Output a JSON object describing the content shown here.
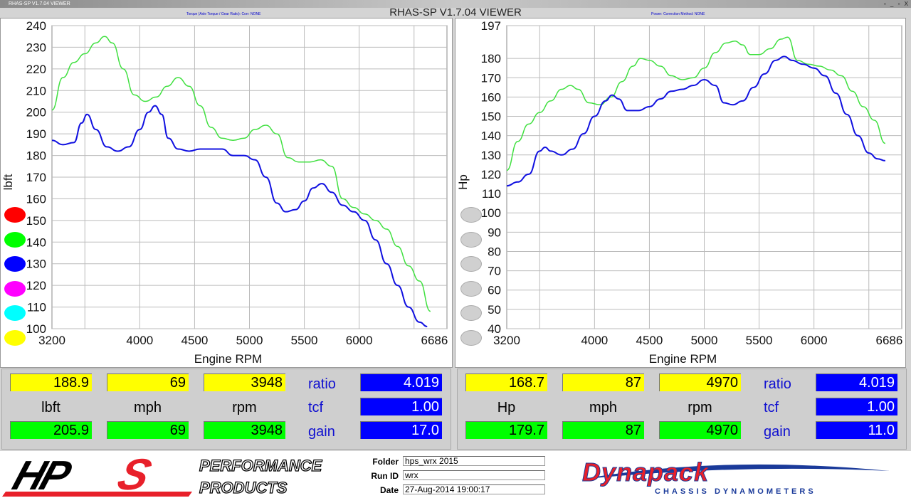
{
  "window": {
    "title": "RHAS-SP V1.7.04  VIEWER",
    "app_title": "RHAS-SP V1.7.04  VIEWER",
    "controls": "▫ _ ▫ X"
  },
  "left_chart": {
    "subtitle": "Torque (Axle Torque / Gear Ratio):      Corr: NONE"
  },
  "right_chart": {
    "subtitle": "Power:      Correction Method: NONE"
  },
  "chart_data": [
    {
      "type": "line",
      "ylabel": "lbft",
      "xlabel": "Engine RPM",
      "xlim": [
        3200,
        6800
      ],
      "ylim": [
        100,
        240
      ],
      "x_ticks": [
        3200,
        4000,
        4500,
        5000,
        5500,
        6000,
        6686
      ],
      "y_ticks": [
        240,
        230,
        220,
        210,
        200,
        190,
        180,
        170,
        160,
        150,
        140,
        130,
        120,
        110,
        100
      ],
      "grid": true,
      "series": [
        {
          "color": "#40e040",
          "x": [
            3200,
            3300,
            3400,
            3500,
            3600,
            3680,
            3750,
            3850,
            3950,
            4050,
            4150,
            4250,
            4350,
            4450,
            4550,
            4650,
            4750,
            4850,
            4950,
            5050,
            5150,
            5250,
            5350,
            5450,
            5550,
            5650,
            5750,
            5850,
            5950,
            6050,
            6150,
            6250,
            6350,
            6450,
            6550,
            6650
          ],
          "y": [
            201,
            216,
            223,
            227,
            232,
            235,
            232,
            220,
            208,
            205,
            207,
            212,
            216,
            212,
            203,
            193,
            188,
            187,
            188,
            192,
            194,
            190,
            179,
            177,
            177,
            178,
            175,
            160,
            156,
            153,
            150,
            146,
            138,
            129,
            122,
            108
          ]
        },
        {
          "color": "#1010e0",
          "x": [
            3200,
            3300,
            3400,
            3470,
            3520,
            3600,
            3700,
            3800,
            3900,
            4000,
            4080,
            4140,
            4200,
            4260,
            4350,
            4450,
            4550,
            4650,
            4750,
            4850,
            4950,
            5050,
            5150,
            5250,
            5330,
            5420,
            5500,
            5580,
            5660,
            5750,
            5850,
            5950,
            6050,
            6150,
            6250,
            6350,
            6450,
            6550,
            6620
          ],
          "y": [
            187,
            185,
            186,
            195,
            199,
            192,
            184,
            182,
            184,
            192,
            200,
            203,
            199,
            188,
            183,
            182,
            183,
            183,
            183,
            180,
            180,
            178,
            170,
            158,
            154,
            155,
            159,
            165,
            167,
            163,
            157,
            154,
            150,
            141,
            130,
            120,
            110,
            103,
            101
          ]
        }
      ]
    },
    {
      "type": "line",
      "ylabel": "Hp",
      "xlabel": "Engine RPM",
      "xlim": [
        3200,
        6800
      ],
      "ylim": [
        40,
        197
      ],
      "x_ticks": [
        3200,
        4000,
        4500,
        5000,
        5500,
        6000,
        6686
      ],
      "y_ticks": [
        197,
        180,
        170,
        160,
        150,
        140,
        130,
        120,
        110,
        100,
        90,
        80,
        70,
        60,
        50,
        40
      ],
      "grid": true,
      "series": [
        {
          "color": "#40e040",
          "x": [
            3200,
            3300,
            3400,
            3500,
            3600,
            3700,
            3780,
            3850,
            3950,
            4050,
            4150,
            4250,
            4350,
            4420,
            4500,
            4600,
            4700,
            4800,
            4900,
            5000,
            5100,
            5200,
            5280,
            5350,
            5420,
            5500,
            5600,
            5700,
            5760,
            5850,
            5950,
            6050,
            6150,
            6250,
            6350,
            6450,
            6550,
            6650
          ],
          "y": [
            122,
            137,
            146,
            152,
            158,
            164,
            166,
            164,
            157,
            156,
            160,
            168,
            176,
            180,
            179,
            176,
            171,
            169,
            170,
            175,
            183,
            188,
            189,
            187,
            182,
            182,
            185,
            190,
            191,
            179,
            177,
            176,
            174,
            171,
            163,
            155,
            148,
            136
          ]
        },
        {
          "color": "#1010e0",
          "x": [
            3200,
            3300,
            3400,
            3500,
            3550,
            3600,
            3700,
            3800,
            3900,
            4000,
            4100,
            4160,
            4220,
            4300,
            4400,
            4500,
            4600,
            4700,
            4800,
            4900,
            5000,
            5100,
            5180,
            5260,
            5350,
            5450,
            5550,
            5650,
            5730,
            5800,
            5900,
            6000,
            6100,
            6200,
            6300,
            6400,
            6500,
            6580,
            6650
          ],
          "y": [
            114,
            116,
            120,
            132,
            134,
            132,
            130,
            133,
            141,
            150,
            158,
            161,
            159,
            153,
            153,
            155,
            159,
            163,
            164,
            166,
            169,
            166,
            157,
            156,
            158,
            165,
            172,
            179,
            181,
            179,
            177,
            175,
            171,
            162,
            151,
            140,
            131,
            128,
            127
          ]
        }
      ]
    }
  ],
  "left_indicators": [
    {
      "color": "#ff0000"
    },
    {
      "color": "#00ff00"
    },
    {
      "color": "#0000ff"
    },
    {
      "color": "#ff00ff"
    },
    {
      "color": "#00ffff"
    },
    {
      "color": "#ffff00"
    }
  ],
  "right_indicators": [
    {
      "color": "#d0d0d0"
    },
    {
      "color": "#d0d0d0"
    },
    {
      "color": "#d0d0d0"
    },
    {
      "color": "#d0d0d0"
    },
    {
      "color": "#d0d0d0"
    },
    {
      "color": "#d0d0d0"
    }
  ],
  "left_readout": {
    "top": [
      "188.9",
      "69",
      "3948"
    ],
    "units": [
      "lbft",
      "mph",
      "rpm"
    ],
    "bottom": [
      "205.9",
      "69",
      "3948"
    ],
    "ratio_label": "ratio",
    "ratio": "4.019",
    "tcf_label": "tcf",
    "tcf": "1.00",
    "gain_label": "gain",
    "gain": "17.0"
  },
  "right_readout": {
    "top": [
      "168.7",
      "87",
      "4970"
    ],
    "units": [
      "Hp",
      "mph",
      "rpm"
    ],
    "bottom": [
      "179.7",
      "87",
      "4970"
    ],
    "ratio_label": "ratio",
    "ratio": "4.019",
    "tcf_label": "tcf",
    "tcf": "1.00",
    "gain_label": "gain",
    "gain": "11.0"
  },
  "footer": {
    "hps_logo": "HPS",
    "hps_tagline1": "PERFORMANCE",
    "hps_tagline2": "PRODUCTS",
    "folder_label": "Folder",
    "folder": "hps_wrx 2015",
    "runid_label": "Run ID",
    "runid": "wrx",
    "date_label": "Date",
    "date": "27-Aug-2014   19:00:17",
    "dynapack_logo": "Dynapack",
    "dynapack_sub": "CHASSIS  DYNAMOMETERS"
  }
}
